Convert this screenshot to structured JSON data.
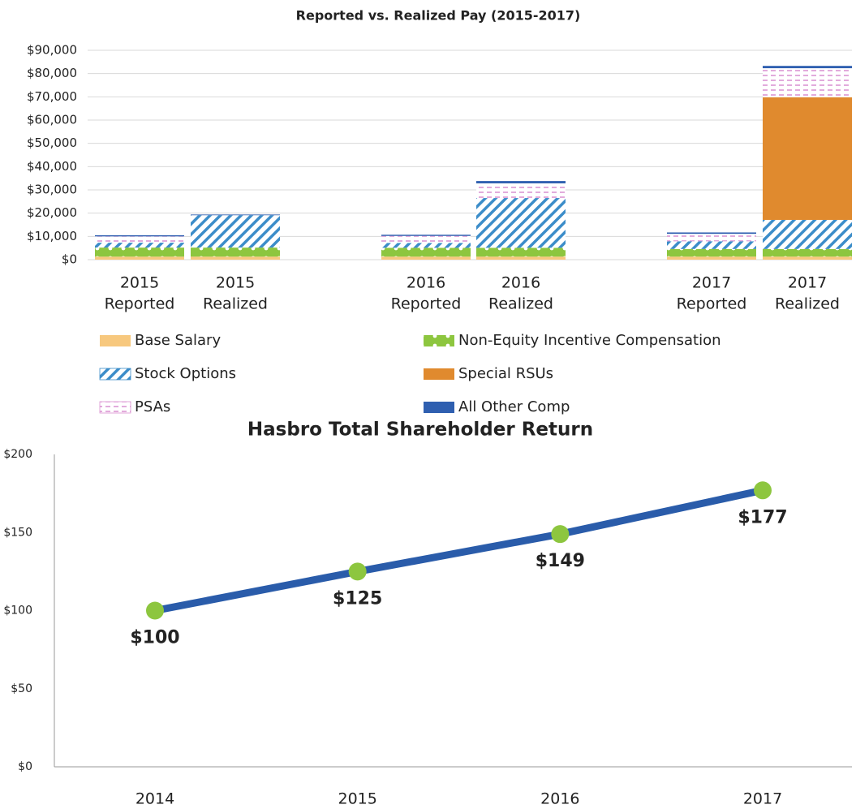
{
  "chart_data": [
    {
      "type": "stacked_bar",
      "title": "Reported vs. Realized Pay (2015-2017)",
      "categories": [
        [
          "2015",
          "Reported"
        ],
        [
          "2015",
          "Realized"
        ],
        [
          "2016",
          "Reported"
        ],
        [
          "2016",
          "Realized"
        ],
        [
          "2017",
          "Reported"
        ],
        [
          "2017",
          "Realized"
        ]
      ],
      "series": [
        {
          "name": "Base Salary",
          "color": "#f7c87e",
          "pattern": "solid",
          "values": [
            1300,
            1300,
            1300,
            1300,
            1300,
            1300
          ]
        },
        {
          "name": "Non-Equity Incentive Compensation",
          "color": "#8dc63f",
          "pattern": "dots",
          "values": [
            3900,
            3900,
            3800,
            3800,
            3300,
            3300
          ]
        },
        {
          "name": "Stock Options",
          "color": "#3c8dc9",
          "pattern": "stripes",
          "values": [
            2100,
            13900,
            2100,
            21400,
            3300,
            12500
          ]
        },
        {
          "name": "Special RSUs",
          "color": "#e08a2e",
          "pattern": "solid",
          "values": [
            0,
            0,
            0,
            0,
            0,
            52700
          ]
        },
        {
          "name": "PSAs",
          "color": "#d98fd0",
          "pattern": "dashes",
          "values": [
            2700,
            0,
            3000,
            6300,
            3200,
            12500
          ]
        },
        {
          "name": "All Other Comp",
          "color": "#2f5fb0",
          "pattern": "solid",
          "values": [
            500,
            300,
            500,
            1000,
            600,
            1000
          ]
        }
      ],
      "ylim": [
        0,
        90000
      ],
      "yticks": [
        {
          "value": 0,
          "label": "$0"
        },
        {
          "value": 10000,
          "label": "$10,000"
        },
        {
          "value": 20000,
          "label": "$20,000"
        },
        {
          "value": 30000,
          "label": "$30,000"
        },
        {
          "value": 40000,
          "label": "$40,000"
        },
        {
          "value": 50000,
          "label": "$50,000"
        },
        {
          "value": 60000,
          "label": "$60,000"
        },
        {
          "value": 70000,
          "label": "$70,000"
        },
        {
          "value": 80000,
          "label": "$80,000"
        },
        {
          "value": 90000,
          "label": "$90,000"
        }
      ],
      "grid": true,
      "legend": "bottom"
    },
    {
      "type": "line",
      "title": "Hasbro Total Shareholder Return",
      "categories": [
        "2014",
        "2015",
        "2016",
        "2017"
      ],
      "series": [
        {
          "color": "#2a5caa",
          "marker_color": "#8dc63f",
          "values": [
            100,
            125,
            149,
            177
          ],
          "value_labels": [
            "$100",
            "$125",
            "$149",
            "$177"
          ]
        }
      ],
      "ylim": [
        0,
        200
      ],
      "yticks": [
        {
          "value": 0,
          "label": "$0"
        },
        {
          "value": 50,
          "label": "$50"
        },
        {
          "value": 100,
          "label": "$100"
        },
        {
          "value": 150,
          "label": "$150"
        },
        {
          "value": 200,
          "label": "$200"
        }
      ],
      "grid": false
    }
  ]
}
